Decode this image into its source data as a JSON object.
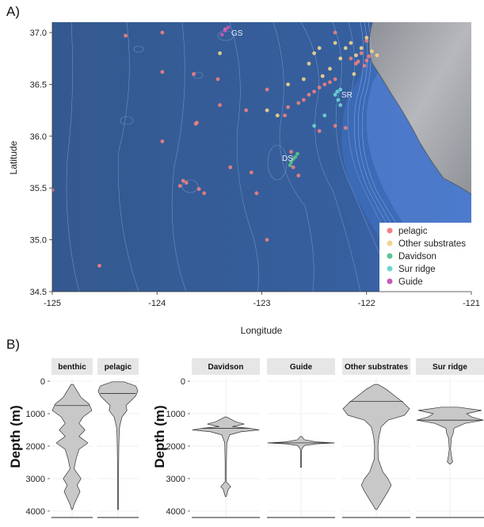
{
  "panel_a": {
    "label": "A)",
    "xlabel": "Longitude",
    "ylabel": "Latitude",
    "x_ticks": [
      "-125",
      "-124",
      "-123",
      "-122",
      "-121"
    ],
    "y_ticks": [
      "37.0",
      "36.5",
      "36.0",
      "35.5",
      "35.0",
      "34.5"
    ],
    "site_labels": [
      "GS",
      "SR",
      "DS"
    ],
    "legend": [
      "pelagic",
      "Other substrates",
      "Davidson",
      "Sur ridge",
      "Guide"
    ],
    "colors": {
      "pelagic": "#f08080",
      "Other substrates": "#f2d58c",
      "Davidson": "#5cc48a",
      "Sur ridge": "#6fd6d2",
      "Guide": "#c45ab8",
      "ocean": "#355f9c",
      "land": "#9a9da4"
    }
  },
  "panel_b": {
    "label": "B)",
    "ylabel": "Depth (m)",
    "y_ticks": [
      "0",
      "1000",
      "2000",
      "3000",
      "4000"
    ],
    "left_facets": [
      "benthic",
      "pelagic"
    ],
    "right_facets": [
      "Davidson",
      "Guide",
      "Other substrates",
      "Sur ridge"
    ],
    "violin_fill": "#c8c8c8"
  },
  "chart_data": [
    {
      "type": "scatter",
      "subtype": "map",
      "xlabel": "Longitude",
      "ylabel": "Latitude",
      "xlim": [
        -125,
        -121
      ],
      "ylim": [
        34.5,
        37.1
      ],
      "legend_position": "bottom-right",
      "series": [
        {
          "name": "pelagic",
          "points": [
            [
              -125.0,
              35.48
            ],
            [
              -124.55,
              34.75
            ],
            [
              -124.3,
              36.97
            ],
            [
              -123.95,
              37.0
            ],
            [
              -123.95,
              36.62
            ],
            [
              -123.95,
              35.95
            ],
            [
              -123.78,
              35.52
            ],
            [
              -123.75,
              35.57
            ],
            [
              -123.72,
              35.55
            ],
            [
              -123.6,
              35.49
            ],
            [
              -123.55,
              35.45
            ],
            [
              -123.65,
              36.6
            ],
            [
              -123.63,
              36.12
            ],
            [
              -123.62,
              36.13
            ],
            [
              -123.42,
              36.55
            ],
            [
              -123.4,
              36.3
            ],
            [
              -123.3,
              35.7
            ],
            [
              -123.15,
              36.25
            ],
            [
              -123.1,
              35.65
            ],
            [
              -123.05,
              35.45
            ],
            [
              -122.95,
              35.0
            ],
            [
              -122.95,
              36.45
            ],
            [
              -122.78,
              36.2
            ],
            [
              -122.75,
              36.28
            ],
            [
              -122.72,
              35.85
            ],
            [
              -122.7,
              35.7
            ],
            [
              -122.65,
              35.62
            ],
            [
              -122.65,
              36.32
            ],
            [
              -122.6,
              36.35
            ],
            [
              -122.55,
              36.4
            ],
            [
              -122.5,
              36.43
            ],
            [
              -122.45,
              36.47
            ],
            [
              -122.4,
              36.5
            ],
            [
              -122.35,
              36.52
            ],
            [
              -122.3,
              36.55
            ],
            [
              -122.2,
              36.08
            ],
            [
              -122.15,
              36.75
            ],
            [
              -122.1,
              36.7
            ],
            [
              -122.08,
              36.72
            ],
            [
              -122.05,
              36.8
            ],
            [
              -122.02,
              36.68
            ],
            [
              -122.0,
              36.73
            ],
            [
              -121.98,
              36.77
            ],
            [
              -122.0,
              36.92
            ],
            [
              -122.3,
              36.1
            ],
            [
              -122.45,
              36.05
            ],
            [
              -122.3,
              37.0
            ],
            [
              -123.35,
              37.03
            ]
          ]
        },
        {
          "name": "Other substrates",
          "points": [
            [
              -123.4,
              36.8
            ],
            [
              -122.95,
              36.25
            ],
            [
              -122.85,
              36.2
            ],
            [
              -122.75,
              36.5
            ],
            [
              -122.55,
              36.7
            ],
            [
              -122.5,
              36.8
            ],
            [
              -122.45,
              36.85
            ],
            [
              -122.35,
              36.65
            ],
            [
              -122.3,
              36.9
            ],
            [
              -122.25,
              36.75
            ],
            [
              -122.2,
              36.85
            ],
            [
              -122.15,
              36.9
            ],
            [
              -122.1,
              36.78
            ],
            [
              -122.05,
              36.85
            ],
            [
              -122.0,
              36.95
            ],
            [
              -121.95,
              36.82
            ],
            [
              -121.9,
              36.78
            ],
            [
              -122.12,
              36.6
            ],
            [
              -122.42,
              36.58
            ],
            [
              -122.6,
              36.55
            ]
          ]
        },
        {
          "name": "Davidson",
          "points": [
            [
              -122.73,
              35.72
            ],
            [
              -122.72,
              35.75
            ],
            [
              -122.7,
              35.78
            ],
            [
              -122.68,
              35.8
            ],
            [
              -122.66,
              35.83
            ]
          ]
        },
        {
          "name": "Sur ridge",
          "points": [
            [
              -122.3,
              36.4
            ],
            [
              -122.28,
              36.43
            ],
            [
              -122.25,
              36.45
            ],
            [
              -122.27,
              36.35
            ],
            [
              -122.4,
              36.2
            ],
            [
              -122.5,
              36.1
            ],
            [
              -122.25,
              36.3
            ]
          ]
        },
        {
          "name": "Guide",
          "points": [
            [
              -123.38,
              36.98
            ],
            [
              -123.35,
              37.02
            ],
            [
              -123.32,
              37.05
            ]
          ]
        }
      ]
    },
    {
      "type": "violin",
      "ylabel": "Depth (m)",
      "ylim": [
        0,
        4100
      ],
      "y_reversed": true,
      "facets": [
        {
          "name": "benthic",
          "median": 750,
          "min": 100,
          "max": 3950,
          "shape": [
            [
              100,
              0.05
            ],
            [
              300,
              0.25
            ],
            [
              500,
              0.45
            ],
            [
              700,
              0.85
            ],
            [
              900,
              1.0
            ],
            [
              1100,
              0.55
            ],
            [
              1300,
              0.35
            ],
            [
              1500,
              0.65
            ],
            [
              1700,
              0.35
            ],
            [
              1900,
              0.8
            ],
            [
              2100,
              0.35
            ],
            [
              2400,
              0.2
            ],
            [
              2700,
              0.1
            ],
            [
              3000,
              0.45
            ],
            [
              3200,
              0.25
            ],
            [
              3400,
              0.4
            ],
            [
              3600,
              0.25
            ],
            [
              3800,
              0.1
            ],
            [
              3950,
              0.02
            ]
          ]
        },
        {
          "name": "pelagic",
          "median": 380,
          "min": 20,
          "max": 3950,
          "shape": [
            [
              20,
              0.3
            ],
            [
              150,
              0.9
            ],
            [
              300,
              1.0
            ],
            [
              450,
              0.9
            ],
            [
              600,
              0.65
            ],
            [
              750,
              0.4
            ],
            [
              900,
              0.45
            ],
            [
              1100,
              0.2
            ],
            [
              1400,
              0.08
            ],
            [
              1700,
              0.05
            ],
            [
              2000,
              0.04
            ],
            [
              2500,
              0.03
            ],
            [
              3000,
              0.025
            ],
            [
              3500,
              0.02
            ],
            [
              3950,
              0.01
            ]
          ]
        },
        {
          "name": "Davidson",
          "median": 1450,
          "min": 1100,
          "max": 3550,
          "shape": [
            [
              1100,
              0.02
            ],
            [
              1250,
              0.3
            ],
            [
              1320,
              0.55
            ],
            [
              1400,
              0.2
            ],
            [
              1450,
              0.7
            ],
            [
              1500,
              1.0
            ],
            [
              1560,
              0.45
            ],
            [
              1650,
              0.12
            ],
            [
              1900,
              0.03
            ],
            [
              2500,
              0.02
            ],
            [
              3100,
              0.02
            ],
            [
              3250,
              0.15
            ],
            [
              3320,
              0.08
            ],
            [
              3550,
              0.01
            ]
          ]
        },
        {
          "name": "Guide",
          "median": 1900,
          "min": 1700,
          "max": 2650,
          "shape": [
            [
              1700,
              0.02
            ],
            [
              1800,
              0.1
            ],
            [
              1870,
              0.45
            ],
            [
              1900,
              1.0
            ],
            [
              1930,
              0.45
            ],
            [
              1980,
              0.1
            ],
            [
              2100,
              0.02
            ],
            [
              2400,
              0.01
            ],
            [
              2650,
              0.01
            ]
          ]
        },
        {
          "name": "Other substrates",
          "median": 620,
          "min": 100,
          "max": 3950,
          "shape": [
            [
              100,
              0.05
            ],
            [
              250,
              0.3
            ],
            [
              450,
              0.55
            ],
            [
              650,
              0.8
            ],
            [
              850,
              1.0
            ],
            [
              1050,
              0.85
            ],
            [
              1200,
              0.35
            ],
            [
              1400,
              0.15
            ],
            [
              1700,
              0.08
            ],
            [
              2000,
              0.05
            ],
            [
              2400,
              0.06
            ],
            [
              2800,
              0.2
            ],
            [
              3000,
              0.35
            ],
            [
              3200,
              0.45
            ],
            [
              3400,
              0.35
            ],
            [
              3650,
              0.2
            ],
            [
              3950,
              0.02
            ]
          ]
        },
        {
          "name": "Sur ridge",
          "median": 1200,
          "min": 800,
          "max": 2550,
          "shape": [
            [
              800,
              0.25
            ],
            [
              900,
              0.95
            ],
            [
              1000,
              0.5
            ],
            [
              1100,
              0.65
            ],
            [
              1200,
              1.0
            ],
            [
              1300,
              0.45
            ],
            [
              1450,
              0.12
            ],
            [
              1600,
              0.1
            ],
            [
              1750,
              0.04
            ],
            [
              2100,
              0.02
            ],
            [
              2400,
              0.06
            ],
            [
              2480,
              0.08
            ],
            [
              2550,
              0.01
            ]
          ]
        }
      ]
    }
  ]
}
